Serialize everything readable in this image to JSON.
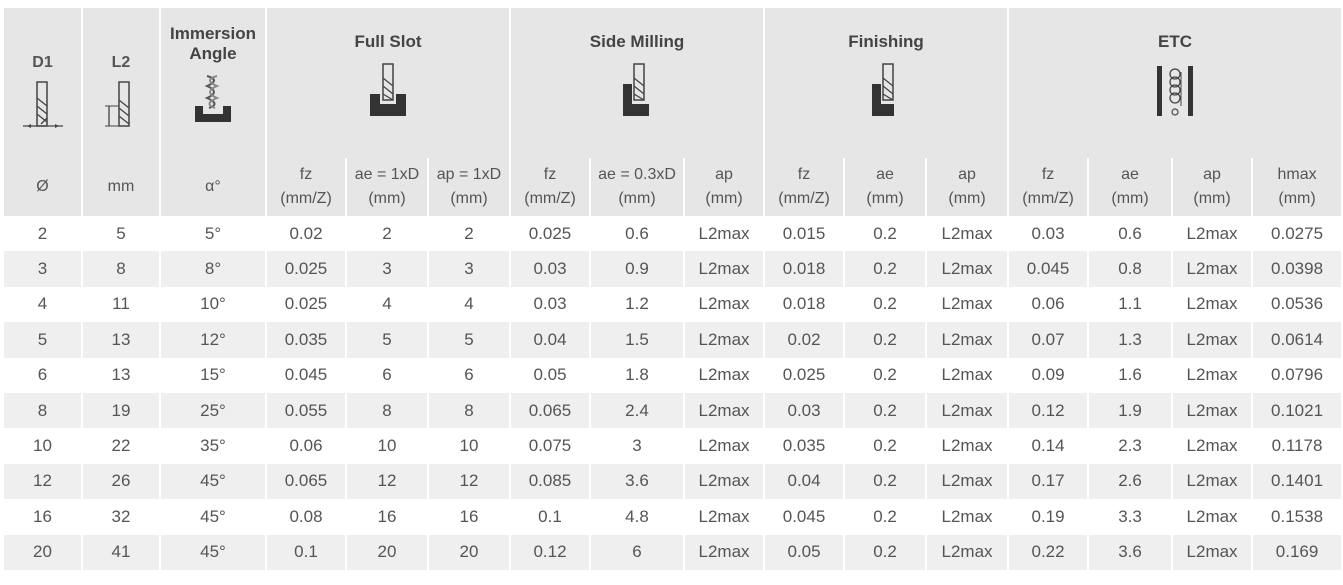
{
  "header": {
    "d1": "D1",
    "l2": "L2",
    "immersion_angle": "Immersion Angle",
    "groups": [
      "Full Slot",
      "Side Milling",
      "Finishing",
      "ETC"
    ]
  },
  "subheader": [
    {
      "l1": "Ø",
      "l2": ""
    },
    {
      "l1": "mm",
      "l2": ""
    },
    {
      "l1": "α°",
      "l2": ""
    },
    {
      "l1": "fz",
      "l2": "(mm/Z)"
    },
    {
      "l1": "ae = 1xD",
      "l2": "(mm)"
    },
    {
      "l1": "ap = 1xD",
      "l2": "(mm)"
    },
    {
      "l1": "fz",
      "l2": "(mm/Z)"
    },
    {
      "l1": "ae = 0.3xD",
      "l2": "(mm)"
    },
    {
      "l1": "ap",
      "l2": "(mm)"
    },
    {
      "l1": "fz",
      "l2": "(mm/Z)"
    },
    {
      "l1": "ae",
      "l2": "(mm)"
    },
    {
      "l1": "ap",
      "l2": "(mm)"
    },
    {
      "l1": "fz",
      "l2": "(mm/Z)"
    },
    {
      "l1": "ae",
      "l2": "(mm)"
    },
    {
      "l1": "ap",
      "l2": "(mm)"
    },
    {
      "l1": "hmax",
      "l2": "(mm)"
    }
  ],
  "rows": [
    [
      "2",
      "5",
      "5°",
      "0.02",
      "2",
      "2",
      "0.025",
      "0.6",
      "L2max",
      "0.015",
      "0.2",
      "L2max",
      "0.03",
      "0.6",
      "L2max",
      "0.0275"
    ],
    [
      "3",
      "8",
      "8°",
      "0.025",
      "3",
      "3",
      "0.03",
      "0.9",
      "L2max",
      "0.018",
      "0.2",
      "L2max",
      "0.045",
      "0.8",
      "L2max",
      "0.0398"
    ],
    [
      "4",
      "11",
      "10°",
      "0.025",
      "4",
      "4",
      "0.03",
      "1.2",
      "L2max",
      "0.018",
      "0.2",
      "L2max",
      "0.06",
      "1.1",
      "L2max",
      "0.0536"
    ],
    [
      "5",
      "13",
      "12°",
      "0.035",
      "5",
      "5",
      "0.04",
      "1.5",
      "L2max",
      "0.02",
      "0.2",
      "L2max",
      "0.07",
      "1.3",
      "L2max",
      "0.0614"
    ],
    [
      "6",
      "13",
      "15°",
      "0.045",
      "6",
      "6",
      "0.05",
      "1.8",
      "L2max",
      "0.025",
      "0.2",
      "L2max",
      "0.09",
      "1.6",
      "L2max",
      "0.0796"
    ],
    [
      "8",
      "19",
      "25°",
      "0.055",
      "8",
      "8",
      "0.065",
      "2.4",
      "L2max",
      "0.03",
      "0.2",
      "L2max",
      "0.12",
      "1.9",
      "L2max",
      "0.1021"
    ],
    [
      "10",
      "22",
      "35°",
      "0.06",
      "10",
      "10",
      "0.075",
      "3",
      "L2max",
      "0.035",
      "0.2",
      "L2max",
      "0.14",
      "2.3",
      "L2max",
      "0.1178"
    ],
    [
      "12",
      "26",
      "45°",
      "0.065",
      "12",
      "12",
      "0.085",
      "3.6",
      "L2max",
      "0.04",
      "0.2",
      "L2max",
      "0.17",
      "2.6",
      "L2max",
      "0.1401"
    ],
    [
      "16",
      "32",
      "45°",
      "0.08",
      "16",
      "16",
      "0.1",
      "4.8",
      "L2max",
      "0.045",
      "0.2",
      "L2max",
      "0.19",
      "3.3",
      "L2max",
      "0.1538"
    ],
    [
      "20",
      "41",
      "45°",
      "0.1",
      "20",
      "20",
      "0.12",
      "6",
      "L2max",
      "0.05",
      "0.2",
      "L2max",
      "0.22",
      "3.6",
      "L2max",
      "0.169"
    ]
  ],
  "icons": [
    "tool-diameter-icon",
    "tool-length-icon",
    "immersion-angle-icon",
    "full-slot-icon",
    "side-milling-icon",
    "finishing-icon",
    "etc-icon"
  ]
}
